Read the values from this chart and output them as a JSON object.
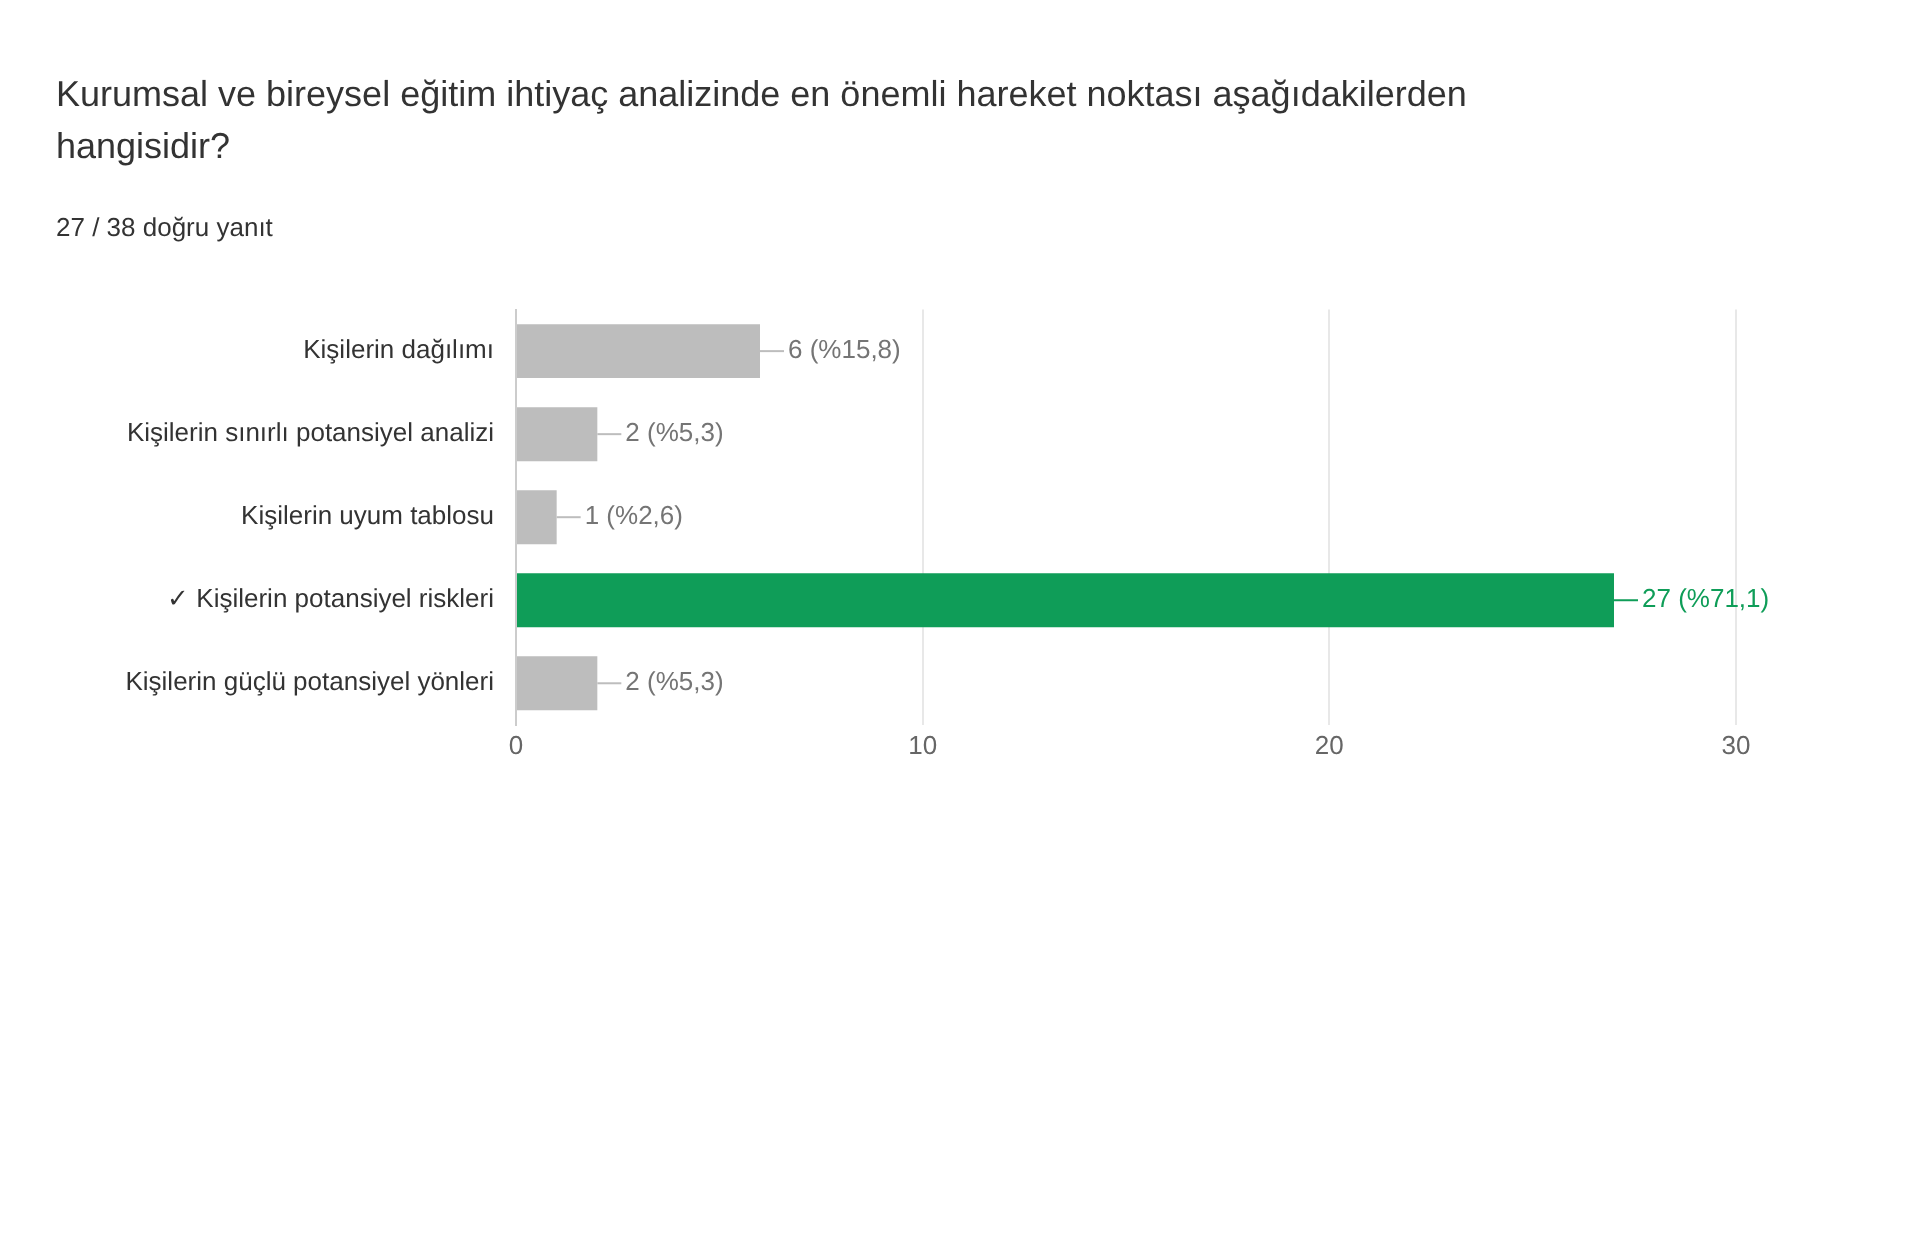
{
  "chart_data": {
    "type": "bar",
    "orientation": "horizontal",
    "title": "Kurumsal ve bireysel eğitim ihtiyaç analizinde en önemli hareket noktası aşağıdakilerden hangisidir?",
    "subtitle": "27 / 38 doğru yanıt",
    "categories": [
      "Kişilerin dağılımı",
      "Kişilerin sınırlı potansiyel analizi",
      "Kişilerin uyum tablosu",
      "✓ Kişilerin potansiyel riskleri",
      "Kişilerin güçlü potansiyel yönleri"
    ],
    "values": [
      6,
      2,
      1,
      27,
      2
    ],
    "colors": [
      "#bdbdbd",
      "#bdbdbd",
      "#bdbdbd",
      "#0f9d58",
      "#bdbdbd"
    ],
    "value_labels": [
      "6 (%15,8)",
      "2 (%5,3)",
      "1 (%2,6)",
      "27 (%71,1)",
      "2 (%5,3)"
    ],
    "xlim": [
      0,
      30
    ],
    "xticks": [
      0,
      10,
      20,
      30
    ],
    "grid": "x",
    "legend": false
  }
}
